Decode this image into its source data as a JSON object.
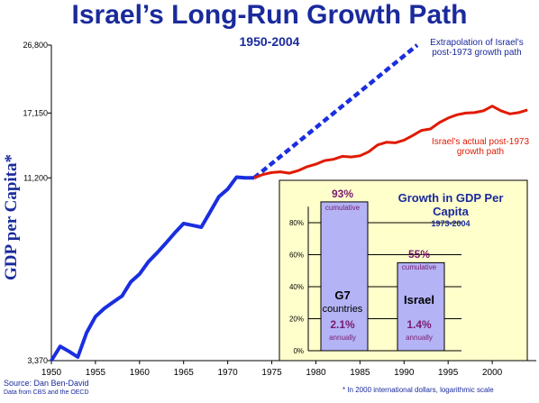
{
  "title": "Israel’s Long-Run Growth Path",
  "subtitle": "1950-2004",
  "ylabel": "GDP per Capita*",
  "extrapolation_label": "Extrapolation of Israel's post-1973 growth path",
  "actual_label": "Israel's actual post-1973 growth path",
  "source": "Source: Dan Ben-David",
  "source2": "Data from CBS and the OECD",
  "footnote": "* In 2000 international dollars, logarithmic scale",
  "colors": {
    "pre1973": "#1a2ee0",
    "post1973": "#e01a00",
    "extrapolation": "#1a2ee0",
    "inset_bg": "#ffffcc",
    "bar": "#b3b3f5"
  },
  "chart_data": [
    {
      "type": "line",
      "scale": "log",
      "xlim": [
        1950,
        2005
      ],
      "ylim": [
        3370,
        26800
      ],
      "x_ticks": [
        1950,
        1955,
        1960,
        1965,
        1970,
        1975,
        1980,
        1985,
        1990,
        1995,
        2000
      ],
      "y_ticks": [
        {
          "value": 3370,
          "label": "3,370"
        },
        {
          "value": 11200,
          "label": "11,200"
        },
        {
          "value": 17150,
          "label": "17,150"
        },
        {
          "value": 26800,
          "label": "26,800"
        }
      ],
      "series": [
        {
          "key": "pre1973",
          "x": [
            1950,
            1951,
            1952,
            1953,
            1954,
            1955,
            1956,
            1957,
            1958,
            1959,
            1960,
            1961,
            1962,
            1963,
            1964,
            1965,
            1966,
            1967,
            1968,
            1969,
            1970,
            1971,
            1972,
            1973
          ],
          "y": [
            3370,
            3700,
            3580,
            3450,
            4050,
            4500,
            4750,
            4950,
            5150,
            5650,
            5950,
            6450,
            6850,
            7300,
            7800,
            8300,
            8200,
            8100,
            8950,
            9900,
            10400,
            11250,
            11200,
            11200
          ]
        },
        {
          "key": "post1973",
          "x": [
            1973,
            1974,
            1975,
            1976,
            1977,
            1978,
            1979,
            1980,
            1981,
            1982,
            1983,
            1984,
            1985,
            1986,
            1987,
            1988,
            1989,
            1990,
            1991,
            1992,
            1993,
            1994,
            1995,
            1996,
            1997,
            1998,
            1999,
            2000,
            2001,
            2002,
            2003,
            2004
          ],
          "y": [
            11200,
            11450,
            11600,
            11650,
            11550,
            11750,
            12050,
            12250,
            12550,
            12650,
            12900,
            12850,
            12950,
            13300,
            13900,
            14150,
            14100,
            14350,
            14800,
            15300,
            15450,
            16100,
            16600,
            16950,
            17150,
            17200,
            17400,
            17950,
            17400,
            17050,
            17200,
            17500
          ]
        },
        {
          "key": "extrapolation",
          "x": [
            1973,
            1991.5
          ],
          "y": [
            11200,
            26800
          ]
        }
      ]
    },
    {
      "type": "bar",
      "title": "Growth in GDP Per Capita",
      "subtitle": "1973-2004",
      "ylim": [
        0,
        90
      ],
      "y_ticks": [
        {
          "value": 0,
          "label": "0%"
        },
        {
          "value": 20,
          "label": "20%"
        },
        {
          "value": 40,
          "label": "40%"
        },
        {
          "value": 60,
          "label": "60%"
        },
        {
          "value": 80,
          "label": "80%"
        }
      ],
      "bars": [
        {
          "name": "G7",
          "name2": "countries",
          "value": 93,
          "value_label": "93%",
          "cumulative_label": "cumulative",
          "annual": "2.1%",
          "annual_label": "annually"
        },
        {
          "name": "Israel",
          "name2": "",
          "value": 55,
          "value_label": "55%",
          "cumulative_label": "cumulative",
          "annual": "1.4%",
          "annual_label": "annually"
        }
      ]
    }
  ]
}
